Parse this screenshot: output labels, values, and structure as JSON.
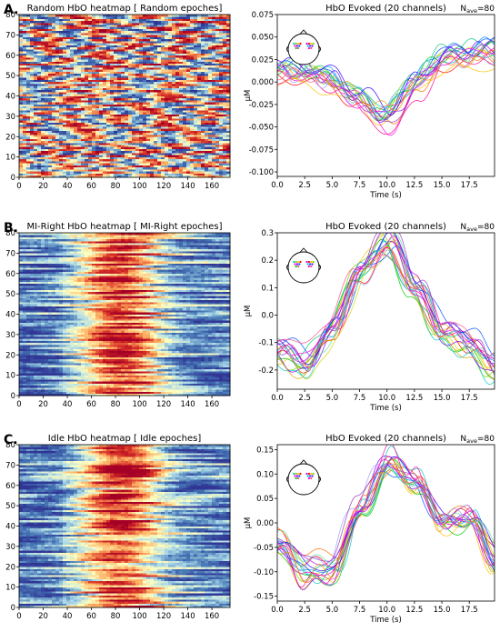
{
  "figure": {
    "panels": [
      {
        "letter": "A.",
        "condition": "Random"
      },
      {
        "letter": "B.",
        "condition": "MI-Right"
      },
      {
        "letter": "C.",
        "condition": "Idle"
      }
    ]
  },
  "chart_data": [
    {
      "type": "heatmap",
      "panel": "A.",
      "title": "Random HbO heatmap [ Random epoches]",
      "xlabel": "",
      "ylabel": "",
      "xlim": [
        0,
        175
      ],
      "ylim": [
        0,
        80
      ],
      "x_ticks": [
        0,
        20,
        40,
        60,
        80,
        100,
        120,
        140,
        160
      ],
      "y_ticks": [
        0,
        10,
        20,
        30,
        40,
        50,
        60,
        70,
        80
      ],
      "colormap": [
        "#313695",
        "#4575b4",
        "#abd9e9",
        "#ffffbf",
        "#fdae61",
        "#d73027",
        "#a50026"
      ],
      "pattern": "random"
    },
    {
      "type": "line",
      "panel": "A.",
      "title": "HbO Evoked (20 channels)",
      "nave_label": "N",
      "nave_sub": "ave",
      "nave_value": "=80",
      "xlabel": "Time (s)",
      "ylabel": "µM",
      "xlim": [
        0,
        19.8
      ],
      "ylim": [
        -0.105,
        0.075
      ],
      "x_ticks": [
        "0.0",
        "2.5",
        "5.0",
        "7.5",
        "10.0",
        "12.5",
        "15.0",
        "17.5"
      ],
      "y_ticks": [
        "0.075",
        "0.050",
        "0.025",
        "0.000",
        "-0.025",
        "-0.050",
        "-0.075",
        "-0.100"
      ],
      "x": [
        0,
        2.5,
        5,
        7.5,
        10,
        12.5,
        15,
        17.5,
        19.8
      ],
      "series_mean": [
        0.012,
        0.01,
        0.002,
        -0.02,
        -0.04,
        -0.005,
        0.025,
        0.03,
        0.035
      ],
      "n_channels": 20,
      "channel_colors": [
        "#ff0000",
        "#ff6a00",
        "#ffbf00",
        "#d6d600",
        "#7cd600",
        "#00c800",
        "#00c878",
        "#00c8c8",
        "#0096ff",
        "#0050ff",
        "#2a00ff",
        "#7a00ff",
        "#c000ff",
        "#ff00e0",
        "#ff0090",
        "#ff5080",
        "#a0a0ff",
        "#60e0a0",
        "#e0a000",
        "#9040c0"
      ]
    },
    {
      "type": "heatmap",
      "panel": "B.",
      "title": "MI-Right HbO heatmap [ MI-Right epoches]",
      "xlabel": "",
      "ylabel": "",
      "xlim": [
        0,
        175
      ],
      "ylim": [
        0,
        80
      ],
      "x_ticks": [
        0,
        20,
        40,
        60,
        80,
        100,
        120,
        140,
        160
      ],
      "y_ticks": [
        0,
        10,
        20,
        30,
        40,
        50,
        60,
        70,
        80
      ],
      "colormap": [
        "#313695",
        "#4575b4",
        "#abd9e9",
        "#ffffbf",
        "#fdae61",
        "#d73027",
        "#a50026"
      ],
      "pattern": "peak_center"
    },
    {
      "type": "line",
      "panel": "B.",
      "title": "HbO Evoked (20 channels)",
      "nave_label": "N",
      "nave_sub": "ave",
      "nave_value": "=80",
      "xlabel": "Time (s)",
      "ylabel": "µM",
      "xlim": [
        0,
        19.8
      ],
      "ylim": [
        -0.27,
        0.3
      ],
      "x_ticks": [
        "0.0",
        "2.5",
        "5.0",
        "7.5",
        "10.0",
        "12.5",
        "15.0",
        "17.5"
      ],
      "y_ticks": [
        "0.3",
        "0.2",
        "0.1",
        "0.0",
        "-0.1",
        "-0.2"
      ],
      "x": [
        0,
        2.5,
        5,
        7.5,
        10,
        12.5,
        15,
        17.5,
        19.8
      ],
      "series_mean": [
        -0.12,
        -0.17,
        -0.05,
        0.14,
        0.24,
        0.09,
        -0.06,
        -0.1,
        -0.18
      ],
      "n_channels": 20,
      "channel_colors": [
        "#ff0000",
        "#ff6a00",
        "#ffbf00",
        "#d6d600",
        "#7cd600",
        "#00c800",
        "#00c878",
        "#00c8c8",
        "#0096ff",
        "#0050ff",
        "#2a00ff",
        "#7a00ff",
        "#c000ff",
        "#ff00e0",
        "#ff0090",
        "#ff5080",
        "#a0a0ff",
        "#60e0a0",
        "#e0a000",
        "#9040c0"
      ]
    },
    {
      "type": "heatmap",
      "panel": "C.",
      "title": "Idle HbO heatmap [ Idle epoches]",
      "xlabel": "",
      "ylabel": "",
      "xlim": [
        0,
        175
      ],
      "ylim": [
        0,
        80
      ],
      "x_ticks": [
        0,
        20,
        40,
        60,
        80,
        100,
        120,
        140,
        160
      ],
      "y_ticks": [
        0,
        10,
        20,
        30,
        40,
        50,
        60,
        70,
        80
      ],
      "colormap": [
        "#313695",
        "#4575b4",
        "#abd9e9",
        "#ffffbf",
        "#fdae61",
        "#d73027",
        "#a50026"
      ],
      "pattern": "peak_center"
    },
    {
      "type": "line",
      "panel": "C.",
      "title": "HbO Evoked (20 channels)",
      "nave_label": "N",
      "nave_sub": "ave",
      "nave_value": "=80",
      "xlabel": "Time (s)",
      "ylabel": "µM",
      "xlim": [
        0,
        19.8
      ],
      "ylim": [
        -0.16,
        0.16
      ],
      "x_ticks": [
        "0.0",
        "2.5",
        "5.0",
        "7.5",
        "10.0",
        "12.5",
        "15.0",
        "17.5"
      ],
      "y_ticks": [
        "0.15",
        "0.10",
        "0.05",
        "0.00",
        "-0.05",
        "-0.10",
        "-0.15"
      ],
      "x": [
        0,
        2.5,
        5,
        7.5,
        10,
        12.5,
        15,
        17.5,
        19.8
      ],
      "series_mean": [
        -0.04,
        -0.1,
        -0.09,
        0.03,
        0.12,
        0.08,
        0.0,
        0.01,
        -0.08
      ],
      "n_channels": 20,
      "channel_colors": [
        "#ff0000",
        "#ff6a00",
        "#ffbf00",
        "#d6d600",
        "#7cd600",
        "#00c800",
        "#00c878",
        "#00c8c8",
        "#0096ff",
        "#0050ff",
        "#2a00ff",
        "#7a00ff",
        "#c000ff",
        "#ff00e0",
        "#ff0090",
        "#ff5080",
        "#a0a0ff",
        "#60e0a0",
        "#e0a000",
        "#9040c0"
      ]
    }
  ]
}
